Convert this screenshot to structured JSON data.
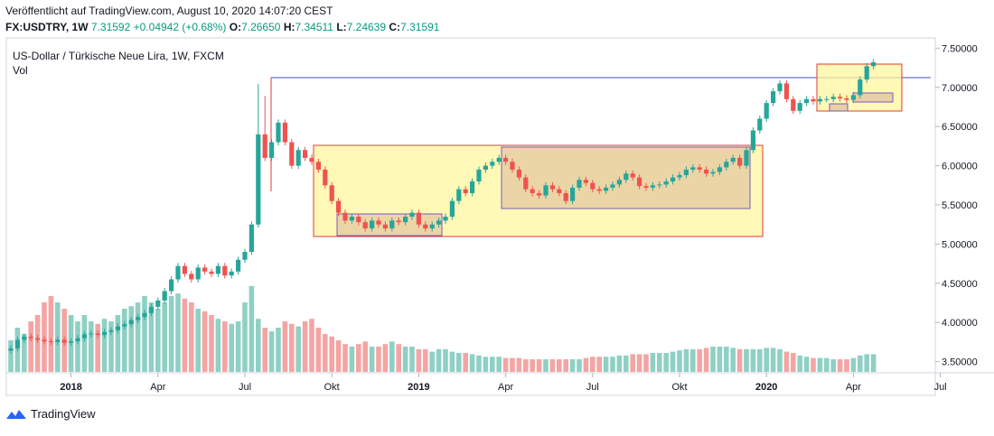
{
  "header": {
    "line1": "Veröffentlicht auf TradingView.com, August 10, 2020 14:07:20 CEST",
    "symbol": "FX:USDTRY, 1W",
    "last": "7.31592",
    "change": "+0.04942 (+0.68%)",
    "o_label": "O:",
    "o": "7.26650",
    "h_label": "H:",
    "h": "7.34511",
    "l_label": "L:",
    "l": "7.24639",
    "c_label": "C:",
    "c": "7.31591"
  },
  "brand": {
    "name": "TradingView",
    "icon": "tradingview-logo-icon"
  },
  "colors": {
    "up": "#26a69a",
    "down": "#ef5350",
    "vol_up": "#8fd0c4",
    "vol_down": "#f4a5a3",
    "box_fill": "#fff59d",
    "box_border": "#e53935",
    "inner_fill": "#e8cfa5",
    "inner_border": "#7e57c2",
    "hline": "#3f51b5"
  },
  "chart_data": {
    "type": "candlestick",
    "title": "US-Dollar / Türkische Neue Lira, 1W, FXCM",
    "volume_label": "Vol",
    "yaxis_ticks": [
      "7.50000",
      "7.00000",
      "6.50000",
      "6.00000",
      "5.50000",
      "5.00000",
      "4.50000",
      "4.00000",
      "3.50000"
    ],
    "ylim": [
      3.45,
      7.55
    ],
    "xaxis_ticks": [
      {
        "label": "2018",
        "bold": true,
        "week": 9
      },
      {
        "label": "Apr",
        "bold": false,
        "week": 22
      },
      {
        "label": "Jul",
        "bold": false,
        "week": 35
      },
      {
        "label": "Okt",
        "bold": false,
        "week": 48
      },
      {
        "label": "2019",
        "bold": true,
        "week": 61
      },
      {
        "label": "Apr",
        "bold": false,
        "week": 74
      },
      {
        "label": "Jul",
        "bold": false,
        "week": 87
      },
      {
        "label": "Okt",
        "bold": false,
        "week": 100
      },
      {
        "label": "2020",
        "bold": true,
        "week": 113
      },
      {
        "label": "Apr",
        "bold": false,
        "week": 126
      },
      {
        "label": "Jul",
        "bold": false,
        "week": 139
      }
    ],
    "closes": [
      3.67,
      3.78,
      3.82,
      3.8,
      3.78,
      3.76,
      3.75,
      3.78,
      3.74,
      3.76,
      3.8,
      3.85,
      3.86,
      3.84,
      3.88,
      3.9,
      3.95,
      3.98,
      4.03,
      4.07,
      4.12,
      4.2,
      4.28,
      4.4,
      4.55,
      4.72,
      4.62,
      4.55,
      4.7,
      4.65,
      4.62,
      4.72,
      4.6,
      4.65,
      4.8,
      4.9,
      5.25,
      6.4,
      6.1,
      6.3,
      6.55,
      6.3,
      6.0,
      6.2,
      6.1,
      6.05,
      5.95,
      5.75,
      5.55,
      5.4,
      5.3,
      5.35,
      5.28,
      5.2,
      5.3,
      5.25,
      5.2,
      5.3,
      5.28,
      5.35,
      5.4,
      5.25,
      5.2,
      5.25,
      5.3,
      5.35,
      5.55,
      5.7,
      5.65,
      5.8,
      5.95,
      6.0,
      6.05,
      6.1,
      6.05,
      5.95,
      5.85,
      5.7,
      5.65,
      5.62,
      5.75,
      5.7,
      5.65,
      5.55,
      5.72,
      5.82,
      5.78,
      5.7,
      5.68,
      5.72,
      5.76,
      5.82,
      5.9,
      5.85,
      5.74,
      5.72,
      5.75,
      5.76,
      5.8,
      5.85,
      5.88,
      5.95,
      5.98,
      5.95,
      5.9,
      5.92,
      5.98,
      6.05,
      6.1,
      6.0,
      6.2,
      6.45,
      6.6,
      6.8,
      6.95,
      7.05,
      6.85,
      6.7,
      6.8,
      6.85,
      6.82,
      6.85,
      6.85,
      6.88,
      6.86,
      6.84,
      6.9,
      7.1,
      7.27,
      7.32
    ],
    "volumes": [
      0.25,
      0.35,
      0.3,
      0.4,
      0.45,
      0.55,
      0.6,
      0.55,
      0.5,
      0.45,
      0.4,
      0.45,
      0.4,
      0.38,
      0.42,
      0.4,
      0.45,
      0.5,
      0.52,
      0.55,
      0.6,
      0.55,
      0.5,
      0.55,
      0.6,
      0.62,
      0.58,
      0.55,
      0.5,
      0.48,
      0.45,
      0.42,
      0.4,
      0.38,
      0.4,
      0.55,
      0.68,
      0.42,
      0.35,
      0.32,
      0.35,
      0.4,
      0.38,
      0.36,
      0.4,
      0.42,
      0.35,
      0.3,
      0.28,
      0.25,
      0.22,
      0.2,
      0.22,
      0.24,
      0.2,
      0.2,
      0.22,
      0.24,
      0.22,
      0.2,
      0.2,
      0.18,
      0.18,
      0.16,
      0.18,
      0.18,
      0.16,
      0.15,
      0.15,
      0.14,
      0.13,
      0.12,
      0.12,
      0.12,
      0.11,
      0.11,
      0.11,
      0.1,
      0.1,
      0.1,
      0.1,
      0.1,
      0.1,
      0.1,
      0.1,
      0.1,
      0.11,
      0.12,
      0.12,
      0.12,
      0.12,
      0.13,
      0.13,
      0.14,
      0.14,
      0.14,
      0.15,
      0.15,
      0.15,
      0.16,
      0.17,
      0.18,
      0.18,
      0.18,
      0.19,
      0.2,
      0.2,
      0.2,
      0.19,
      0.18,
      0.18,
      0.18,
      0.18,
      0.19,
      0.19,
      0.18,
      0.16,
      0.15,
      0.13,
      0.12,
      0.11,
      0.11,
      0.11,
      0.1,
      0.1,
      0.1,
      0.11,
      0.13,
      0.14,
      0.14
    ]
  }
}
